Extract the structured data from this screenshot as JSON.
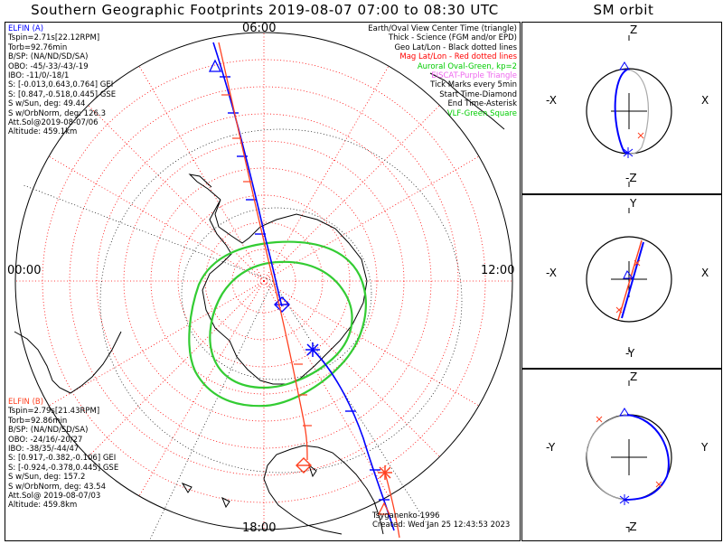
{
  "title": "Southern Geographic Footprints 2019-08-07 07:00 to 08:30 UTC",
  "sm_title": "SM orbit",
  "time_labels": {
    "top": "06:00",
    "left": "00:00",
    "right": "12:00",
    "bottom": "18:00"
  },
  "elfin_a": {
    "name": "ELFIN (A)",
    "color": "#0000ff",
    "lines": [
      "Tspin=2.71s[22.12RPM]",
      "Torb=92.76min",
      "B/SP: (NA/ND/SD/SA)",
      "OBO: -45/-33/-43/-19",
      "IBO: -11/0/-18/1",
      "S: [-0.013,0.643,0.764] GEI",
      "S: [0.847,-0.518,0.445] GSE",
      "S w/Sun, deg: 49.44",
      "S w/OrbNorm, deg: 126.3",
      "Att.Sol@2019-08-07/06",
      "Altitude: 459.1km"
    ]
  },
  "elfin_b": {
    "name": "ELFIN (B)",
    "color": "#ff4020",
    "lines": [
      "Tspin=2.79s[21.43RPM]",
      "Torb=92.86min",
      "B/SP: (NA/ND/SD/SA)",
      "OBO: -24/16/-20/27",
      "IBO: -38/35/-44/47",
      "S: [0.917,-0.382,-0.106] GEI",
      "S: [-0.924,-0.378,0.445] GSE",
      "S w/Sun, deg: 157.2",
      "S w/OrbNorm, deg: 43.54",
      "Att.Sol@ 2019-08-07/03",
      "Altitude: 459.8km"
    ]
  },
  "legend": [
    {
      "text": "Earth/Oval View Center Time (triangle)",
      "color": "#000000"
    },
    {
      "text": "Thick - Science (FGM and/or EPD)",
      "color": "#000000"
    },
    {
      "text": "Geo Lat/Lon - Black dotted lines",
      "color": "#000000"
    },
    {
      "text": "Mag Lat/Lon - Red dotted lines",
      "color": "#ff0000"
    },
    {
      "text": "Auroral Oval-Green, kp=2",
      "color": "#00cc00"
    },
    {
      "text": "EISCAT-Purple Triangle",
      "color": "#ee66ee"
    },
    {
      "text": "Tick Marks every 5min",
      "color": "#000000"
    },
    {
      "text": "Start Time-Diamond",
      "color": "#000000"
    },
    {
      "text": "End Time-Asterisk",
      "color": "#000000"
    },
    {
      "text": "VLF-Green Square",
      "color": "#00cc00"
    }
  ],
  "credit": [
    "Tsyganenko-1996",
    "Created: Wed Jan 25 12:43:53 2023"
  ],
  "panels": [
    {
      "top": "Z",
      "bottom": "-Z",
      "left": "-X",
      "right": "X"
    },
    {
      "top": "Y",
      "bottom": "-Y",
      "left": "-X",
      "right": "X"
    },
    {
      "top": "Z",
      "bottom": "-Z",
      "left": "-Y",
      "right": "Y"
    }
  ],
  "colors": {
    "grid_red": "#ff0000",
    "grid_black": "#000000",
    "oval": "#33cc33",
    "trace_a": "#0000ff",
    "trace_b": "#ff4020",
    "orbit_gray": "#aaaaaa"
  }
}
